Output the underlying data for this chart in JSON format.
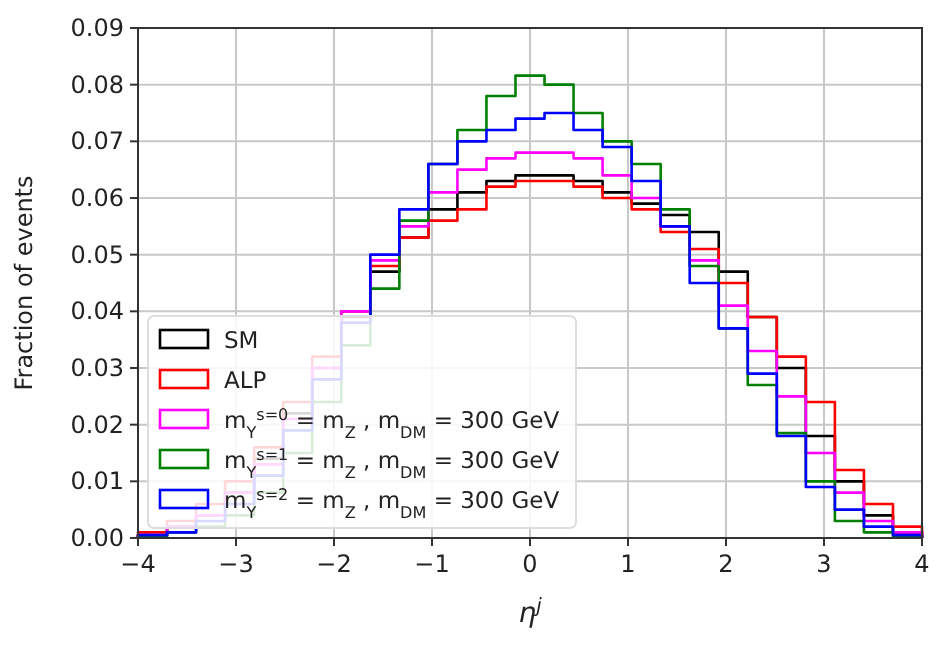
{
  "chart_data": {
    "type": "histogram",
    "xlabel": "η$^{j}$",
    "ylabel": "Fraction of events",
    "bins": [
      -4,
      -3.7037,
      -3.4074,
      -3.1111,
      -2.8148,
      -2.5185,
      -2.2222,
      -1.9259,
      -1.6296,
      -1.3333,
      -1.037,
      -0.7407,
      -0.4444,
      -0.1481,
      0.1481,
      0.4444,
      0.7407,
      1.037,
      1.3333,
      1.6296,
      1.9259,
      2.2222,
      2.5185,
      2.8148,
      3.1111,
      3.4074,
      3.7037,
      4
    ],
    "series": [
      {
        "name": "SM",
        "color": "#000000",
        "values": [
          0.0005,
          0.002,
          0.004,
          0.008,
          0.014,
          0.022,
          0.03,
          0.039,
          0.047,
          0.053,
          0.058,
          0.061,
          0.063,
          0.064,
          0.064,
          0.063,
          0.061,
          0.059,
          0.057,
          0.054,
          0.047,
          0.039,
          0.03,
          0.018,
          0.01,
          0.004,
          0.001
        ]
      },
      {
        "name": "ALP",
        "color": "#ff0000",
        "values": [
          0.001,
          0.003,
          0.006,
          0.01,
          0.016,
          0.024,
          0.032,
          0.04,
          0.048,
          0.053,
          0.056,
          0.058,
          0.062,
          0.063,
          0.063,
          0.062,
          0.06,
          0.058,
          0.054,
          0.051,
          0.045,
          0.039,
          0.032,
          0.024,
          0.012,
          0.006,
          0.002
        ]
      },
      {
        "name": "m$_{Y}$$^{s=0}$ = m$_{Z}$ , m$_{DM}$ = 300 GeV",
        "color": "#ff00ff",
        "values": [
          0.0005,
          0.002,
          0.004,
          0.008,
          0.013,
          0.021,
          0.03,
          0.04,
          0.049,
          0.055,
          0.061,
          0.065,
          0.067,
          0.068,
          0.068,
          0.067,
          0.064,
          0.06,
          0.055,
          0.049,
          0.041,
          0.033,
          0.025,
          0.015,
          0.008,
          0.003,
          0.001
        ]
      },
      {
        "name": "m$_{Y}$$^{s=1}$ = m$_{Z}$ , m$_{DM}$ = 300 GeV",
        "color": "#008000",
        "values": [
          0.0002,
          0.001,
          0.002,
          0.004,
          0.008,
          0.015,
          0.024,
          0.034,
          0.044,
          0.056,
          0.066,
          0.072,
          0.078,
          0.0816,
          0.08,
          0.075,
          0.07,
          0.066,
          0.058,
          0.048,
          0.037,
          0.027,
          0.0185,
          0.01,
          0.003,
          0.001,
          0.0003
        ]
      },
      {
        "name": "m$_{Y}$$^{s=2}$ = m$_{Z}$ , m$_{DM}$ = 300 GeV",
        "color": "#0000ff",
        "values": [
          0.0005,
          0.001,
          0.003,
          0.006,
          0.011,
          0.019,
          0.028,
          0.038,
          0.05,
          0.058,
          0.066,
          0.07,
          0.072,
          0.074,
          0.075,
          0.072,
          0.069,
          0.063,
          0.055,
          0.045,
          0.037,
          0.029,
          0.018,
          0.009,
          0.005,
          0.002,
          0.0005
        ]
      }
    ],
    "xlim": [
      -4,
      4
    ],
    "xticks": [
      -4,
      -3,
      -2,
      -1,
      0,
      1,
      2,
      3,
      4
    ],
    "ylim": [
      0,
      0.09
    ],
    "yticks": [
      {
        "value": 0,
        "label": "0.00"
      },
      {
        "value": 0.01,
        "label": "0.01"
      },
      {
        "value": 0.02,
        "label": "0.02"
      },
      {
        "value": 0.03,
        "label": "0.03"
      },
      {
        "value": 0.04,
        "label": "0.04"
      },
      {
        "value": 0.05,
        "label": "0.05"
      },
      {
        "value": 0.06,
        "label": "0.06"
      },
      {
        "value": 0.07,
        "label": "0.07"
      },
      {
        "value": 0.08,
        "label": "0.08"
      },
      {
        "value": 0.09,
        "label": "0.09"
      }
    ],
    "grid": true,
    "legend": "bottom left"
  }
}
